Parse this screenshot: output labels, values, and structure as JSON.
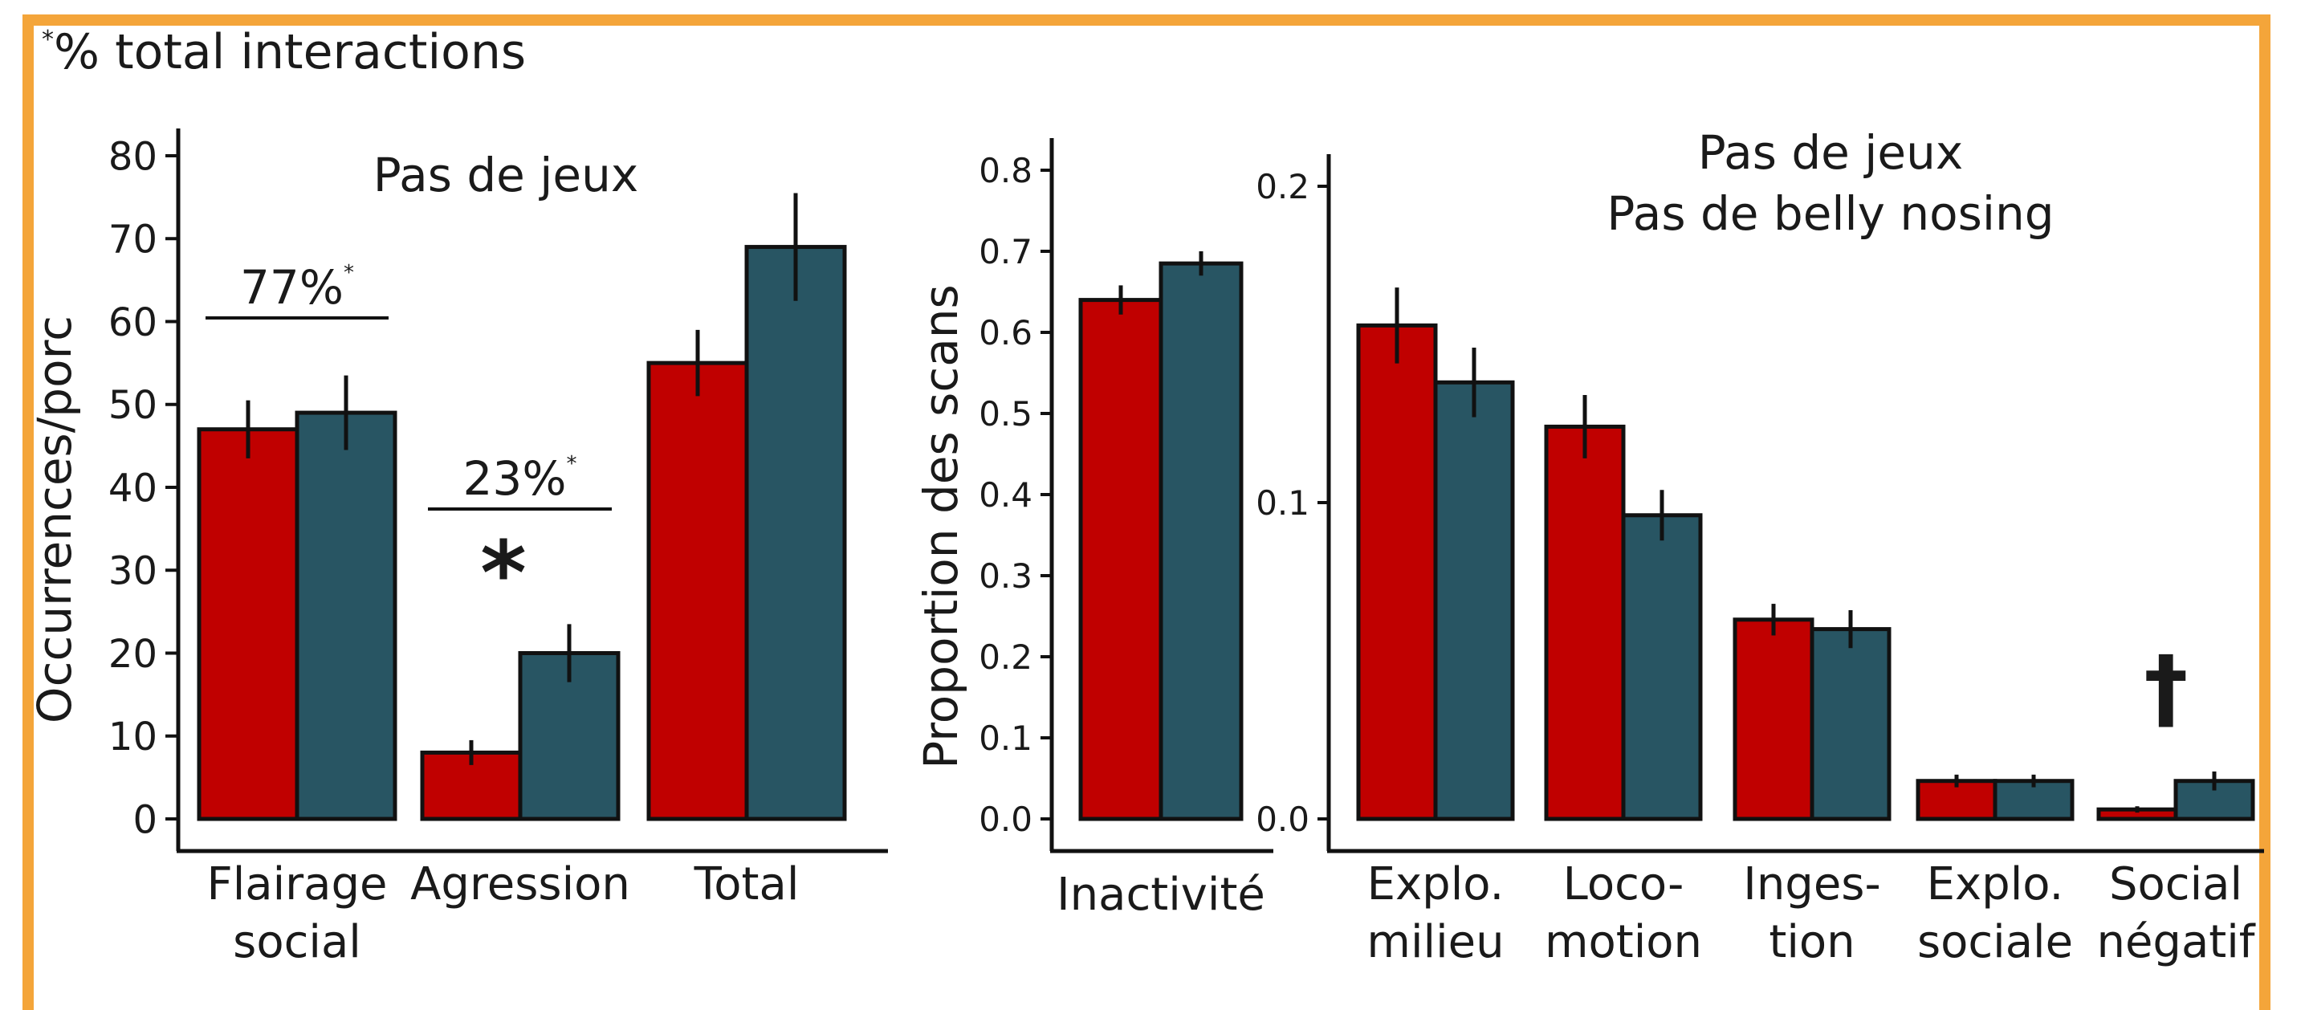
{
  "footnote": {
    "marker": "*",
    "text": "% total interactions"
  },
  "colors": {
    "frame": "#f4a53a",
    "red": "#c00000",
    "teal": "#285563",
    "axis": "#111111"
  },
  "chart_data": [
    {
      "type": "bar",
      "title": "Pas de jeux",
      "ylabel": "Occurrences/porc",
      "ylim": [
        0,
        80
      ],
      "yticks": [
        "0",
        "10",
        "20",
        "30",
        "40",
        "50",
        "60",
        "70",
        "80"
      ],
      "categories": [
        [
          "Flairage",
          "social"
        ],
        [
          "Agression"
        ],
        [
          "Total"
        ]
      ],
      "series": [
        {
          "color": "#c00000",
          "values": [
            47,
            8,
            55
          ],
          "err": [
            3.5,
            1.5,
            4
          ]
        },
        {
          "color": "#285563",
          "values": [
            49,
            20,
            69
          ],
          "err": [
            4.5,
            3.5,
            6.5
          ]
        }
      ],
      "annotations": [
        {
          "text": "77%",
          "sup": "*",
          "category": 0
        },
        {
          "text": "23%",
          "sup": "*",
          "category": 1
        },
        {
          "text": "*",
          "category": 1
        }
      ]
    },
    {
      "type": "bar",
      "ylabel": "Proportion des scans",
      "ylim": [
        0,
        0.8
      ],
      "yticks": [
        "0.0",
        "0.1",
        "0.2",
        "0.3",
        "0.4",
        "0.5",
        "0.6",
        "0.7",
        "0.8"
      ],
      "categories": [
        [
          "Inactivité"
        ]
      ],
      "series": [
        {
          "color": "#c00000",
          "values": [
            0.64
          ],
          "err": [
            0.018
          ]
        },
        {
          "color": "#285563",
          "values": [
            0.685
          ],
          "err": [
            0.015
          ]
        }
      ]
    },
    {
      "type": "bar",
      "title": [
        "Pas de jeux",
        "Pas de belly nosing"
      ],
      "ylim": [
        0,
        0.2
      ],
      "yticks": [
        "0.0",
        "0.1",
        "0.2"
      ],
      "categories": [
        [
          "Explo.",
          "milieu"
        ],
        [
          "Loco-",
          "motion"
        ],
        [
          "Inges-",
          "tion"
        ],
        [
          "Explo.",
          "sociale"
        ],
        [
          "Social",
          "négatif"
        ]
      ],
      "series": [
        {
          "color": "#c00000",
          "values": [
            0.156,
            0.124,
            0.063,
            0.012,
            0.003
          ],
          "err": [
            0.012,
            0.01,
            0.005,
            0.002,
            0.001
          ]
        },
        {
          "color": "#285563",
          "values": [
            0.138,
            0.096,
            0.06,
            0.012,
            0.012
          ],
          "err": [
            0.011,
            0.008,
            0.006,
            0.002,
            0.003
          ]
        }
      ],
      "annotations": [
        {
          "text": "†",
          "category": 4
        }
      ]
    }
  ]
}
